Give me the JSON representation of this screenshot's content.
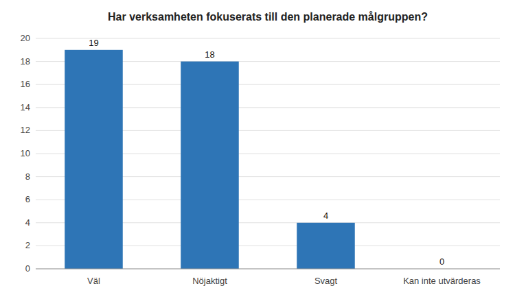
{
  "chart_data": {
    "type": "bar",
    "title": "Har verksamheten fokuserats till den planerade målgruppen?",
    "categories": [
      "Väl",
      "Nöjaktigt",
      "Svagt",
      "Kan inte utvärderas"
    ],
    "values": [
      19,
      18,
      4,
      0
    ],
    "color": "#2E75B6",
    "ylim": [
      0,
      20
    ],
    "yticks": [
      0,
      2,
      4,
      6,
      8,
      10,
      12,
      14,
      16,
      18,
      20
    ],
    "grid": true,
    "data_labels": true
  }
}
